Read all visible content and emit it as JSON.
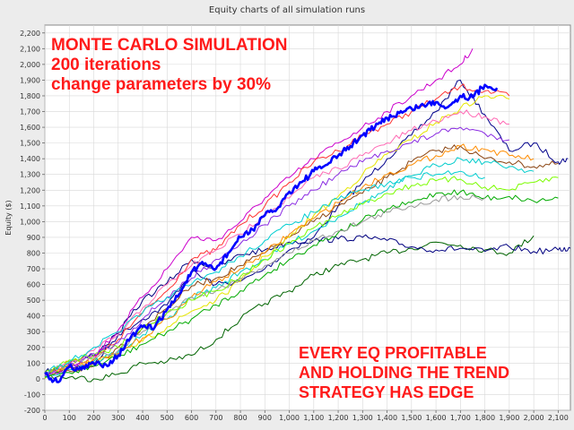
{
  "chart_data": {
    "type": "line",
    "title": "Equity charts of all simulation runs",
    "xlabel": "",
    "ylabel": "Equity ($)",
    "xlim": [
      0,
      2150
    ],
    "ylim": [
      -200,
      2250
    ],
    "x_ticks": [
      0,
      100,
      200,
      300,
      400,
      500,
      600,
      700,
      800,
      900,
      1000,
      1100,
      1200,
      1300,
      1400,
      1500,
      1600,
      1700,
      1800,
      1900,
      2000,
      2100
    ],
    "x_tick_labels": [
      "0",
      "100",
      "200",
      "300",
      "400",
      "500",
      "600",
      "700",
      "800",
      "900",
      "1,000",
      "1,100",
      "1,200",
      "1,300",
      "1,400",
      "1,500",
      "1,600",
      "1,700",
      "1,800",
      "1,900",
      "2,000",
      "2,100"
    ],
    "y_ticks": [
      -200,
      -100,
      0,
      100,
      200,
      300,
      400,
      500,
      600,
      700,
      800,
      900,
      1000,
      1100,
      1200,
      1300,
      1400,
      1500,
      1600,
      1700,
      1800,
      1900,
      2000,
      2100,
      2200
    ],
    "y_tick_labels": [
      "-200",
      "-100",
      "0",
      "100",
      "200",
      "300",
      "400",
      "500",
      "600",
      "700",
      "800",
      "900",
      "1,000",
      "1,100",
      "1,200",
      "1,300",
      "1,400",
      "1,500",
      "1,600",
      "1,700",
      "1,800",
      "1,900",
      "2,000",
      "2,100",
      "2,200"
    ],
    "grid": true,
    "series": [
      {
        "color": "#0000ff",
        "emphasis": true,
        "x": [
          0,
          50,
          100,
          150,
          200,
          250,
          300,
          350,
          400,
          450,
          500,
          550,
          600,
          650,
          700,
          750,
          800,
          850,
          900,
          950,
          1000,
          1050,
          1100,
          1150,
          1200,
          1250,
          1300,
          1350,
          1400,
          1450,
          1500,
          1550,
          1600,
          1650,
          1700,
          1750,
          1800,
          1850
        ],
        "y": [
          30,
          -20,
          80,
          60,
          100,
          90,
          150,
          260,
          330,
          330,
          440,
          540,
          680,
          730,
          700,
          800,
          900,
          950,
          1040,
          1080,
          1190,
          1250,
          1320,
          1360,
          1420,
          1480,
          1550,
          1600,
          1660,
          1690,
          1720,
          1740,
          1760,
          1730,
          1800,
          1790,
          1870,
          1850
        ]
      },
      {
        "color": "#00008b",
        "x": [
          0,
          100,
          200,
          300,
          400,
          500,
          600,
          700,
          800,
          900,
          1000,
          1100,
          1200,
          1300,
          1400,
          1500,
          1600,
          1700,
          1800,
          1900,
          2000,
          2100,
          2140
        ],
        "y": [
          40,
          80,
          90,
          280,
          380,
          470,
          680,
          600,
          620,
          700,
          820,
          900,
          1100,
          1250,
          1400,
          1550,
          1700,
          1900,
          1680,
          1450,
          1500,
          1380,
          1400
        ]
      },
      {
        "color": "#006400",
        "x": [
          0,
          100,
          200,
          300,
          400,
          500,
          600,
          700,
          800,
          900,
          1000,
          1100,
          1200,
          1300,
          1400,
          1500,
          1600,
          1700,
          1800,
          1900,
          2000
        ],
        "y": [
          20,
          10,
          0,
          30,
          100,
          110,
          150,
          250,
          380,
          480,
          560,
          660,
          720,
          760,
          800,
          830,
          870,
          850,
          820,
          800,
          910
        ]
      },
      {
        "color": "#000080",
        "x": [
          0,
          100,
          200,
          300,
          400,
          500,
          600,
          700,
          800,
          900,
          1000,
          1100,
          1200,
          1300,
          1400,
          1500,
          1600,
          1700,
          1800,
          1900,
          2000,
          2100,
          2150
        ],
        "y": [
          30,
          100,
          150,
          290,
          500,
          610,
          760,
          700,
          790,
          820,
          870,
          880,
          890,
          900,
          880,
          840,
          820,
          830,
          810,
          840,
          810,
          820,
          830
        ]
      },
      {
        "color": "#cc00cc",
        "x": [
          0,
          100,
          200,
          300,
          400,
          500,
          600,
          700,
          800,
          900,
          1000,
          1100,
          1200,
          1300,
          1400,
          1500,
          1600,
          1700,
          1750
        ],
        "y": [
          20,
          90,
          140,
          310,
          520,
          700,
          900,
          880,
          1000,
          1150,
          1280,
          1400,
          1500,
          1600,
          1700,
          1800,
          1900,
          2000,
          2100
        ]
      },
      {
        "color": "#ff3333",
        "x": [
          0,
          100,
          200,
          300,
          400,
          500,
          600,
          700,
          800,
          900,
          1000,
          1100,
          1200,
          1300,
          1400,
          1500,
          1600,
          1700,
          1800,
          1900
        ],
        "y": [
          10,
          70,
          120,
          250,
          420,
          560,
          760,
          820,
          980,
          1100,
          1250,
          1380,
          1450,
          1550,
          1620,
          1700,
          1780,
          1860,
          1830,
          1800
        ]
      },
      {
        "color": "#8b4513",
        "x": [
          0,
          100,
          200,
          300,
          400,
          500,
          600,
          700,
          800,
          900,
          1000,
          1100,
          1200,
          1300,
          1400,
          1500,
          1600,
          1700,
          1800,
          1900,
          2000,
          2100
        ],
        "y": [
          40,
          50,
          80,
          200,
          330,
          450,
          590,
          640,
          720,
          800,
          900,
          1000,
          1100,
          1180,
          1280,
          1380,
          1450,
          1480,
          1400,
          1380,
          1350,
          1370
        ]
      },
      {
        "color": "#e6e600",
        "x": [
          0,
          100,
          200,
          300,
          400,
          500,
          600,
          700,
          800,
          900,
          1000,
          1100,
          1200,
          1300,
          1400,
          1500,
          1600,
          1700,
          1800,
          1900
        ],
        "y": [
          0,
          80,
          130,
          150,
          240,
          330,
          430,
          500,
          620,
          780,
          900,
          1040,
          1160,
          1300,
          1430,
          1520,
          1630,
          1720,
          1800,
          1780
        ]
      },
      {
        "color": "#00cccc",
        "x": [
          0,
          100,
          200,
          300,
          400,
          500,
          600,
          700,
          800,
          900,
          1000,
          1100,
          1200,
          1300,
          1400,
          1500,
          1600,
          1700,
          1800,
          1900,
          2000
        ],
        "y": [
          20,
          60,
          110,
          170,
          280,
          380,
          520,
          580,
          680,
          760,
          860,
          940,
          1030,
          1120,
          1200,
          1290,
          1360,
          1400,
          1380,
          1350,
          1320
        ]
      },
      {
        "color": "#00aa00",
        "x": [
          0,
          100,
          200,
          300,
          400,
          500,
          600,
          700,
          800,
          900,
          1000,
          1100,
          1200,
          1300,
          1400,
          1500,
          1600,
          1700,
          1800,
          1900,
          2000,
          2100
        ],
        "y": [
          10,
          40,
          80,
          140,
          220,
          300,
          380,
          470,
          560,
          660,
          760,
          850,
          930,
          1010,
          1080,
          1120,
          1180,
          1190,
          1150,
          1160,
          1130,
          1150
        ]
      },
      {
        "color": "#ff8c00",
        "x": [
          0,
          100,
          200,
          300,
          400,
          500,
          600,
          700,
          800,
          900,
          1000,
          1100,
          1200,
          1300,
          1400,
          1500,
          1600,
          1700,
          1800,
          1900,
          2000
        ],
        "y": [
          30,
          110,
          100,
          160,
          260,
          380,
          520,
          620,
          700,
          800,
          920,
          1020,
          1120,
          1220,
          1300,
          1360,
          1420,
          1480,
          1460,
          1420,
          1400
        ]
      },
      {
        "color": "#ff69b4",
        "x": [
          0,
          100,
          200,
          300,
          400,
          500,
          600,
          700,
          800,
          900,
          1000,
          1100,
          1200,
          1300,
          1400,
          1500,
          1600,
          1700,
          1800,
          1900
        ],
        "y": [
          20,
          90,
          180,
          280,
          450,
          600,
          720,
          820,
          920,
          1050,
          1150,
          1280,
          1340,
          1420,
          1500,
          1580,
          1640,
          1700,
          1670,
          1620
        ]
      },
      {
        "color": "#999999",
        "x": [
          0,
          100,
          200,
          300,
          400,
          500,
          600,
          700,
          800,
          900,
          1000,
          1100,
          1200,
          1300,
          1400,
          1500,
          1600,
          1700,
          1800
        ],
        "y": [
          30,
          100,
          130,
          180,
          300,
          420,
          520,
          560,
          640,
          720,
          800,
          880,
          940,
          1000,
          1060,
          1100,
          1140,
          1160,
          1150
        ]
      },
      {
        "color": "#7cfc00",
        "x": [
          0,
          100,
          200,
          300,
          400,
          500,
          600,
          700,
          800,
          900,
          1000,
          1100,
          1200,
          1300,
          1400,
          1500,
          1600,
          1700,
          1800,
          1900,
          2000,
          2100
        ],
        "y": [
          40,
          120,
          150,
          200,
          320,
          420,
          500,
          560,
          650,
          760,
          860,
          960,
          1040,
          1110,
          1180,
          1230,
          1260,
          1270,
          1220,
          1200,
          1250,
          1280
        ]
      },
      {
        "color": "#8a2be2",
        "x": [
          0,
          100,
          200,
          300,
          400,
          500,
          600,
          700,
          800,
          900,
          1000,
          1100,
          1200,
          1300,
          1400,
          1500,
          1600,
          1700,
          1800,
          1900
        ],
        "y": [
          20,
          70,
          160,
          230,
          380,
          520,
          640,
          760,
          860,
          980,
          1100,
          1200,
          1300,
          1380,
          1450,
          1500,
          1560,
          1600,
          1560,
          1520
        ]
      },
      {
        "color": "#00ced1",
        "x": [
          0,
          100,
          200,
          300,
          400,
          500,
          600,
          700,
          800,
          900,
          1000,
          1100,
          1200,
          1300,
          1400,
          1500,
          1600,
          1700,
          1800
        ],
        "y": [
          40,
          110,
          200,
          300,
          420,
          520,
          600,
          680,
          780,
          880,
          980,
          1060,
          1140,
          1200,
          1240,
          1280,
          1300,
          1320,
          1280
        ]
      }
    ]
  },
  "overlay": {
    "top_lines": [
      "MONTE CARLO SIMULATION",
      "200 iterations",
      "change parameters by 30%"
    ],
    "bottom_lines": [
      "EVERY EQ PROFITABLE",
      "AND HOLDING THE TREND",
      "STRATEGY HAS EDGE"
    ]
  }
}
